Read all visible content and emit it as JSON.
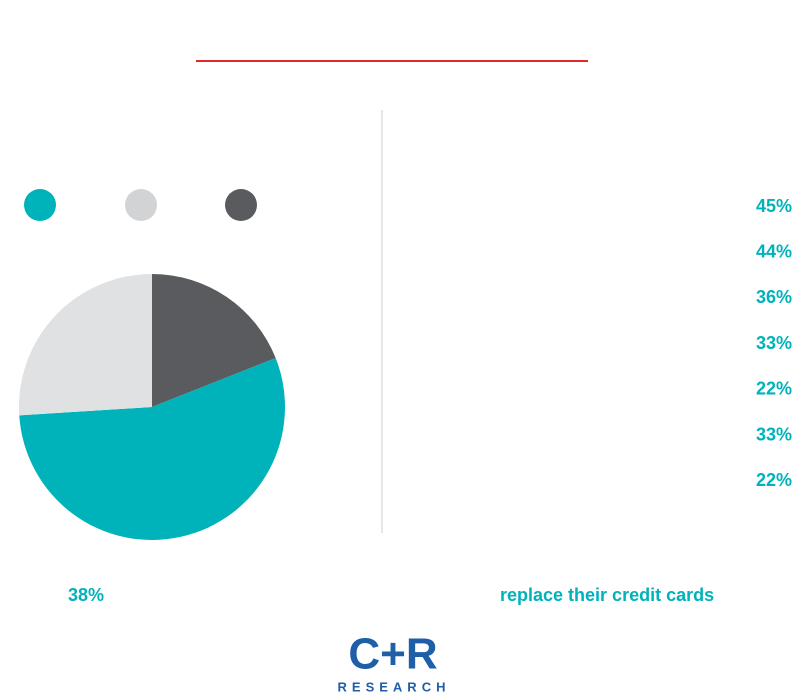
{
  "chart_data": {
    "type": "pie",
    "values": [
      19,
      55,
      26
    ],
    "colors": [
      "#5a5b5e",
      "#00b2ba",
      "#e0e1e3"
    ],
    "start_angle": 0
  },
  "pie_note": "38%",
  "stats": [
    "45%",
    "44%",
    "36%",
    "33%",
    "22%",
    "33%",
    "22%"
  ],
  "right_note": "replace their credit cards",
  "logo": {
    "mark": "C+R",
    "word": "RESEARCH"
  }
}
